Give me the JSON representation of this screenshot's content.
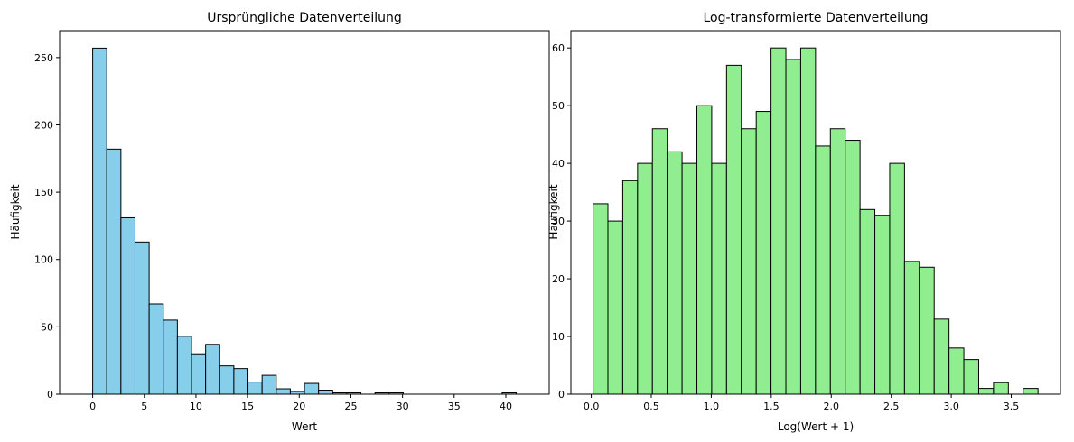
{
  "chart_data": [
    {
      "type": "bar",
      "title": "Ursprüngliche Datenverteilung",
      "xlabel": "Wert",
      "ylabel": "Häufigkeit",
      "xlim": [
        -3.2,
        44.2
      ],
      "ylim": [
        0,
        270
      ],
      "xticks": [
        "0",
        "5",
        "10",
        "15",
        "20",
        "25",
        "30",
        "35",
        "40"
      ],
      "yticks": [
        "0",
        "50",
        "100",
        "150",
        "200",
        "250"
      ],
      "bin_start": 0.0,
      "bin_width": 1.367,
      "values": [
        257,
        182,
        131,
        113,
        67,
        55,
        43,
        30,
        37,
        21,
        19,
        9,
        14,
        4,
        2,
        8,
        3,
        1,
        1,
        0,
        1,
        1,
        0,
        0,
        0,
        0,
        0,
        0,
        0,
        1
      ],
      "bar_color": "#87ceeb",
      "edge_color": "#000000",
      "grid": false
    },
    {
      "type": "bar",
      "title": "Log-transformierte Datenverteilung",
      "xlabel": "Log(Wert + 1)",
      "ylabel": "Häufigkeit",
      "xlim": [
        -0.17,
        3.91
      ],
      "ylim": [
        0,
        63
      ],
      "xticks": [
        "0.0",
        "0.5",
        "1.0",
        "1.5",
        "2.0",
        "2.5",
        "3.0",
        "3.5"
      ],
      "yticks": [
        "0",
        "10",
        "20",
        "30",
        "40",
        "50",
        "60"
      ],
      "bin_start": 0.015,
      "bin_width": 0.1236,
      "values": [
        33,
        30,
        37,
        40,
        46,
        42,
        40,
        50,
        40,
        57,
        46,
        49,
        60,
        58,
        60,
        43,
        46,
        44,
        32,
        31,
        40,
        23,
        22,
        13,
        8,
        6,
        1,
        2,
        0,
        1
      ],
      "bar_color": "#90ee90",
      "edge_color": "#000000",
      "grid": false
    }
  ]
}
